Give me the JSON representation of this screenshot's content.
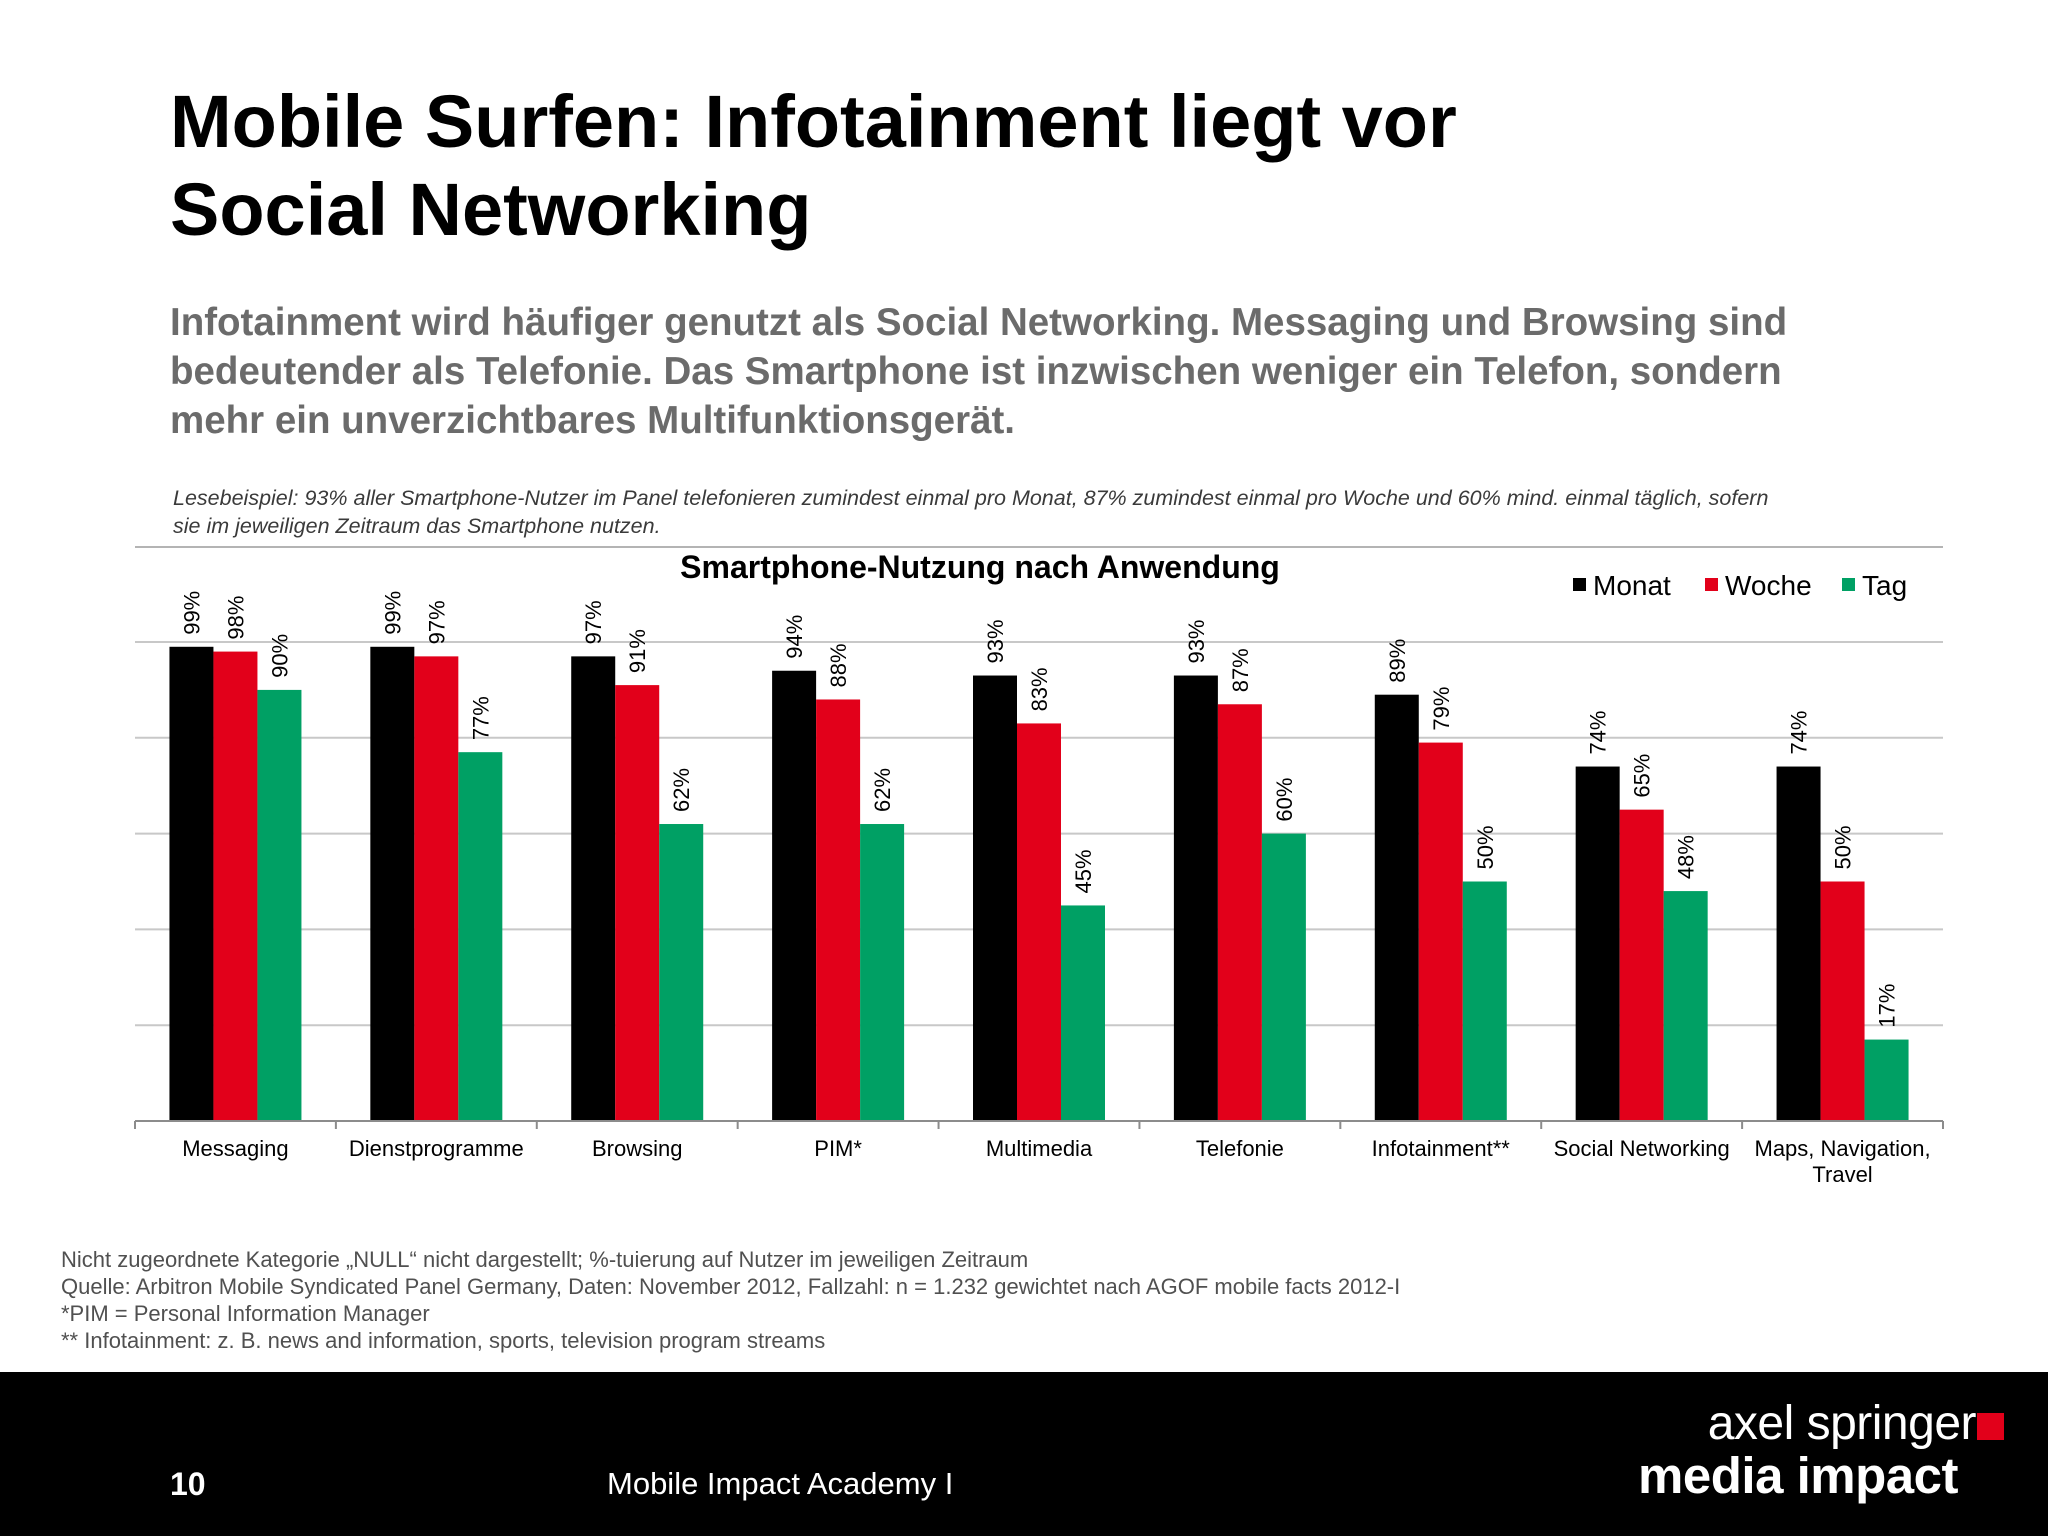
{
  "title": {
    "line1": "Mobile Surfen: Infotainment liegt vor",
    "line2": "Social Networking"
  },
  "subtitle": {
    "line1": "Infotainment wird häufiger genutzt als Social Networking. Messaging und Browsing sind",
    "line2": "bedeutender als Telefonie. Das Smartphone ist inzwischen weniger ein Telefon, sondern",
    "line3": "mehr ein unverzichtbares Multifunktionsgerät."
  },
  "reading_example": {
    "line1": "Lesebeispiel: 93% aller Smartphone-Nutzer im Panel telefonieren zumindest einmal pro Monat, 87% zumindest einmal pro Woche und 60% mind. einmal täglich, sofern",
    "line2": "sie im jeweiligen Zeitraum das Smartphone nutzen."
  },
  "chart_data": {
    "type": "bar",
    "title": "Smartphone-Nutzung nach Anwendung",
    "categories": [
      [
        "Messaging"
      ],
      [
        "Dienstprogramme"
      ],
      [
        "Browsing"
      ],
      [
        "PIM*"
      ],
      [
        "Multimedia"
      ],
      [
        "Telefonie"
      ],
      [
        "Infotainment**"
      ],
      [
        "Social Networking"
      ],
      [
        "Maps, Navigation,",
        "Travel"
      ]
    ],
    "series": [
      {
        "name": "Monat",
        "color": "#000000",
        "values": [
          99,
          99,
          97,
          94,
          93,
          93,
          89,
          74,
          74
        ]
      },
      {
        "name": "Woche",
        "color": "#e2001a",
        "values": [
          98,
          97,
          91,
          88,
          83,
          87,
          79,
          65,
          50
        ]
      },
      {
        "name": "Tag",
        "color": "#00a064",
        "values": [
          90,
          77,
          62,
          62,
          45,
          60,
          50,
          48,
          17
        ]
      }
    ],
    "value_suffix": "%",
    "ylim": [
      0,
      100
    ],
    "gridlines": [
      20,
      40,
      60,
      80,
      100
    ],
    "grid": true,
    "legend_position": "top-right",
    "xlabel": "",
    "ylabel": ""
  },
  "footnotes": {
    "line1": "Nicht zugeordnete Kategorie „NULL“ nicht dargestellt; %-tuierung auf Nutzer im jeweiligen Zeitraum",
    "line2": "Quelle: Arbitron Mobile Syndicated Panel Germany, Daten: November 2012, Fallzahl: n = 1.232 gewichtet nach AGOF mobile facts 2012-I",
    "line3": "*PIM = Personal Information Manager",
    "line4": "** Infotainment: z. B. news and information, sports, television program streams"
  },
  "footer": {
    "page_number": "10",
    "caption": "Mobile Impact Academy I",
    "brand_line1": "axel springer",
    "brand_line2": "media impact",
    "brand_color": "#e2001a"
  }
}
